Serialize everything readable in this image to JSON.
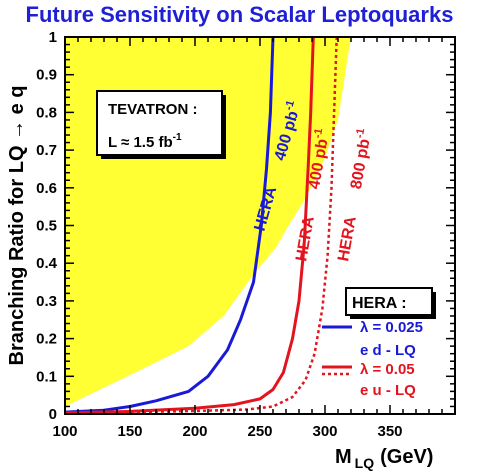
{
  "chart_data": {
    "type": "line",
    "title": "Future Sensitivity on Scalar Leptoquarks",
    "xlabel": {
      "main": "M",
      "sub": "LQ",
      "unit": "(GeV)"
    },
    "ylabel": "Branching Ratio for LQ → e q",
    "xlim": [
      100,
      400
    ],
    "ylim": [
      0,
      1
    ],
    "xticks": [
      100,
      150,
      200,
      250,
      300,
      350
    ],
    "yticks": [
      0,
      0.1,
      0.2,
      0.3,
      0.4,
      0.5,
      0.6,
      0.7,
      0.8,
      0.9,
      1
    ],
    "grid": false,
    "excluded_region": {
      "label": "TEVATRON :",
      "lumi": "L ≈ 1.5 fb",
      "lumi_sup": "-1",
      "color": "#ffff33",
      "boundary": [
        [
          100,
          0.02
        ],
        [
          130,
          0.07
        ],
        [
          160,
          0.12
        ],
        [
          195,
          0.18
        ],
        [
          222,
          0.26
        ],
        [
          245,
          0.37
        ],
        [
          262,
          0.44
        ],
        [
          272,
          0.5
        ],
        [
          283,
          0.56
        ],
        [
          292,
          0.62
        ],
        [
          300,
          0.68
        ],
        [
          310,
          0.78
        ],
        [
          320,
          1.0
        ]
      ]
    },
    "series": [
      {
        "label_main": "HERA",
        "label_lumi": "400 pb",
        "label_sup": "-1",
        "lambda": "λ = 0.025",
        "channel": "e d - LQ",
        "color": "#1a1ad6",
        "dashed": false,
        "points": [
          [
            100,
            0.005
          ],
          [
            130,
            0.01
          ],
          [
            150,
            0.02
          ],
          [
            170,
            0.035
          ],
          [
            195,
            0.06
          ],
          [
            210,
            0.1
          ],
          [
            225,
            0.17
          ],
          [
            235,
            0.25
          ],
          [
            245,
            0.35
          ],
          [
            251,
            0.5
          ],
          [
            255,
            0.65
          ],
          [
            258,
            0.8
          ],
          [
            260,
            1.0
          ]
        ]
      },
      {
        "label_main": "HERA",
        "label_lumi": "400 pb",
        "label_sup": "-1",
        "lambda": "λ = 0.05",
        "channel": "e u - LQ",
        "color": "#e3141e",
        "dashed": false,
        "points": [
          [
            100,
            0.003
          ],
          [
            150,
            0.007
          ],
          [
            200,
            0.015
          ],
          [
            230,
            0.025
          ],
          [
            250,
            0.04
          ],
          [
            260,
            0.065
          ],
          [
            268,
            0.11
          ],
          [
            275,
            0.2
          ],
          [
            280,
            0.3
          ],
          [
            284,
            0.45
          ],
          [
            287,
            0.65
          ],
          [
            289,
            0.8
          ],
          [
            291,
            1.0
          ]
        ]
      },
      {
        "label_main": "HERA",
        "label_lumi": "800 pb",
        "label_sup": "-1",
        "color": "#e3141e",
        "dashed": true,
        "points": [
          [
            100,
            0.002
          ],
          [
            200,
            0.008
          ],
          [
            240,
            0.012
          ],
          [
            260,
            0.02
          ],
          [
            275,
            0.045
          ],
          [
            285,
            0.09
          ],
          [
            292,
            0.16
          ],
          [
            298,
            0.28
          ],
          [
            302,
            0.42
          ],
          [
            305,
            0.6
          ],
          [
            307,
            0.8
          ],
          [
            309,
            1.0
          ]
        ]
      }
    ],
    "legend": {
      "title": "HERA :",
      "placement": "bottom-right"
    }
  }
}
